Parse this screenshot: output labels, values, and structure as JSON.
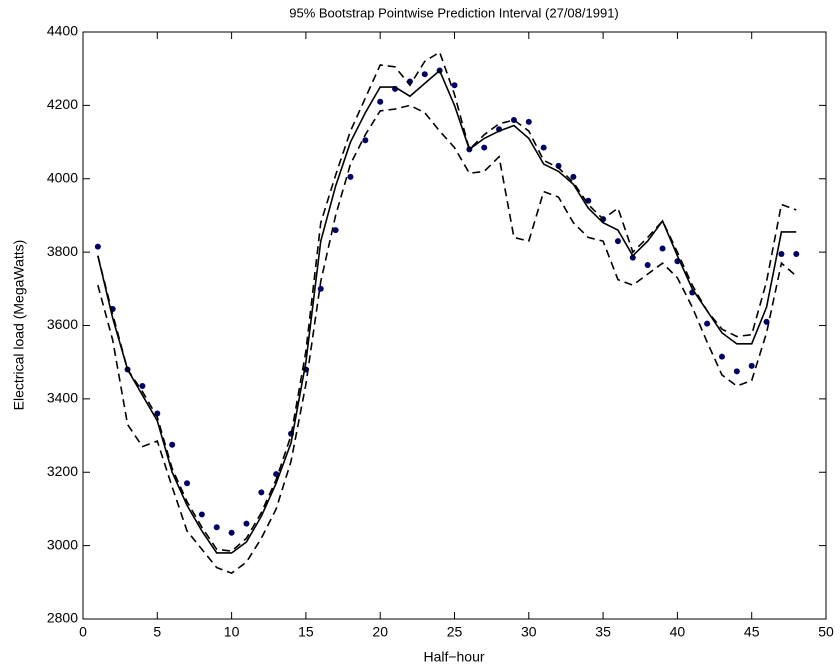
{
  "chart_data": {
    "type": "line",
    "title": "95% Bootstrap Pointwise Prediction Interval (27/08/1991)",
    "x_label": "Half−hour",
    "y_label": "Electrical load (MegaWatts)",
    "x": [
      1,
      2,
      3,
      4,
      5,
      6,
      7,
      8,
      9,
      10,
      11,
      12,
      13,
      14,
      15,
      16,
      17,
      18,
      19,
      20,
      21,
      22,
      23,
      24,
      25,
      26,
      27,
      28,
      29,
      30,
      31,
      32,
      33,
      34,
      35,
      36,
      37,
      38,
      39,
      40,
      41,
      42,
      43,
      44,
      45,
      46,
      47,
      48
    ],
    "series": [
      {
        "style": "markers",
        "color": "#000066",
        "values": [
          3815,
          3645,
          3480,
          3435,
          3360,
          3275,
          3170,
          3085,
          3050,
          3035,
          3060,
          3145,
          3195,
          3305,
          3480,
          3700,
          3860,
          4005,
          4105,
          4210,
          4245,
          4265,
          4285,
          4295,
          4255,
          4080,
          4085,
          4135,
          4160,
          4155,
          4085,
          4035,
          4005,
          3940,
          3890,
          3830,
          3785,
          3765,
          3810,
          3775,
          3690,
          3605,
          3515,
          3475,
          3490,
          3610,
          3795,
          3795
        ]
      },
      {
        "style": "solid",
        "color": "#000000",
        "values": [
          3790,
          3620,
          3480,
          3410,
          3340,
          3200,
          3110,
          3040,
          2980,
          2980,
          3010,
          3080,
          3170,
          3280,
          3500,
          3830,
          3980,
          4100,
          4180,
          4250,
          4250,
          4225,
          4260,
          4295,
          4200,
          4080,
          4110,
          4130,
          4145,
          4110,
          4040,
          4020,
          3985,
          3920,
          3880,
          3860,
          3790,
          3830,
          3885,
          3790,
          3700,
          3640,
          3580,
          3550,
          3550,
          3650,
          3855,
          3855
        ]
      },
      {
        "style": "dashed",
        "color": "#000000",
        "values": [
          3790,
          3630,
          3480,
          3420,
          3350,
          3210,
          3120,
          3050,
          2990,
          2985,
          3020,
          3090,
          3180,
          3300,
          3530,
          3880,
          4010,
          4130,
          4220,
          4310,
          4305,
          4255,
          4320,
          4345,
          4230,
          4080,
          4120,
          4150,
          4160,
          4130,
          4050,
          4030,
          3990,
          3930,
          3890,
          3920,
          3800,
          3840,
          3885,
          3800,
          3710,
          3640,
          3590,
          3570,
          3575,
          3720,
          3930,
          3915
        ]
      },
      {
        "style": "dashed",
        "color": "#000000",
        "values": [
          3710,
          3560,
          3330,
          3270,
          3285,
          3160,
          3040,
          2990,
          2940,
          2925,
          2955,
          3020,
          3100,
          3230,
          3440,
          3720,
          3900,
          4040,
          4120,
          4185,
          4190,
          4200,
          4180,
          4130,
          4085,
          4015,
          4020,
          4060,
          3840,
          3830,
          3965,
          3950,
          3880,
          3840,
          3830,
          3725,
          3710,
          3740,
          3770,
          3730,
          3650,
          3555,
          3465,
          3435,
          3450,
          3580,
          3770,
          3735
        ]
      }
    ],
    "xlim": [
      0,
      50
    ],
    "xticks": [
      0,
      5,
      10,
      15,
      20,
      25,
      30,
      35,
      40,
      45,
      50
    ],
    "ylim": [
      2800,
      4400
    ],
    "yticks": [
      2800,
      3000,
      3200,
      3400,
      3600,
      3800,
      4000,
      4200,
      4400
    ],
    "grid": false
  }
}
